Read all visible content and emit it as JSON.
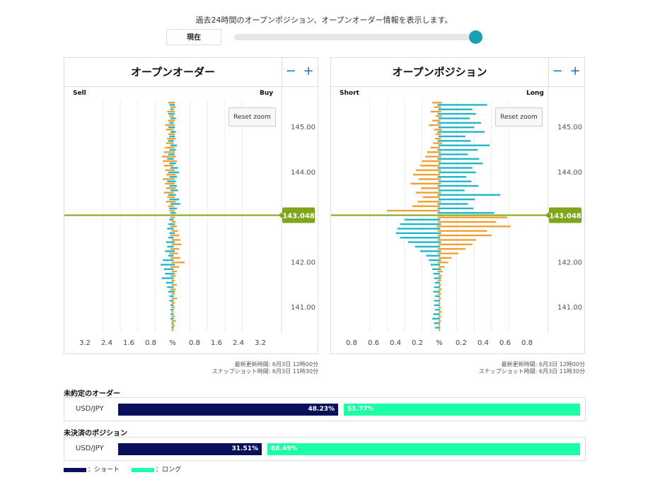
{
  "header": {
    "intro": "過去24時間のオープンポジション、オープンオーダー情報を表示します。",
    "now_button": "現在",
    "slider_value": 1.0
  },
  "colors": {
    "teal": "#20b7c8",
    "orange": "#f0a030",
    "price_line": "#7fa61a",
    "short": "#0a0f5c",
    "long": "#1cffa6"
  },
  "orders_panel": {
    "title": "オープンオーダー",
    "zoom_out": "−",
    "zoom_in": "+",
    "left_label": "Sell",
    "right_label": "Buy",
    "reset_zoom": "Reset zoom",
    "current_price": "143.048",
    "updated": "最新更新時間: 6月3日 12時00分",
    "snapshot": "スナップショット時間: 6月3日 11時30分"
  },
  "positions_panel": {
    "title": "オープンポジション",
    "zoom_out": "−",
    "zoom_in": "+",
    "left_label": "Short",
    "right_label": "Long",
    "reset_zoom": "Reset zoom",
    "current_price": "143.048",
    "updated": "最新更新時間: 6月3日 12時00分",
    "snapshot": "スナップショット時間: 6月3日 11時30分"
  },
  "chart_data": [
    {
      "type": "bar",
      "orientation": "horizontal-butterfly",
      "title": "オープンオーダー",
      "left_label": "Sell",
      "right_label": "Buy",
      "price_ticks": [
        "145.00",
        "144.00",
        "142.00",
        "141.00"
      ],
      "x_ticks_left": [
        "3.2",
        "2.4",
        "1.6",
        "0.8"
      ],
      "x_center_label": "%",
      "x_ticks_right": [
        "0.8",
        "1.6",
        "2.4",
        "3.2"
      ],
      "current_price": 143.048,
      "xlim": [
        -4.0,
        4.0
      ],
      "ylim": [
        140.45,
        145.6
      ],
      "series": [
        {
          "color": "orange",
          "prices": [
            145.55,
            145.45,
            145.35,
            145.25,
            145.15,
            145.05,
            144.95,
            144.85,
            144.75,
            144.65,
            144.55,
            144.45,
            144.35,
            144.25,
            144.15,
            144.05,
            143.95,
            143.85,
            143.75,
            143.65,
            143.55,
            143.45,
            143.35,
            143.25,
            143.15
          ],
          "left": [
            0.2,
            0.1,
            0.25,
            0.15,
            0.2,
            0.35,
            0.3,
            0.2,
            0.25,
            0.3,
            0.35,
            0.4,
            0.5,
            0.45,
            0.4,
            0.35,
            0.3,
            0.45,
            0.35,
            0.3,
            0.4,
            0.25,
            0.3,
            0.2,
            0.15
          ],
          "right": [
            0.1,
            0.15,
            0.1,
            0.05,
            0.1,
            0.1,
            0.05,
            0.1,
            0.15,
            0.05,
            0.1,
            0.1,
            0.15,
            0.2,
            0.05,
            0.1,
            0.15,
            0.1,
            0.1,
            0.15,
            0.05,
            0.1,
            0.15,
            0.05,
            0.1
          ]
        },
        {
          "color": "teal",
          "prices": [
            145.5,
            145.4,
            145.3,
            145.2,
            145.1,
            145.0,
            144.9,
            144.8,
            144.7,
            144.6,
            144.5,
            144.4,
            144.3,
            144.2,
            144.1,
            144.0,
            143.9,
            143.8,
            143.7,
            143.6,
            143.5,
            143.4,
            143.3,
            143.2,
            143.1
          ],
          "left": [
            0.15,
            0.1,
            0.2,
            0.1,
            0.15,
            0.2,
            0.1,
            0.15,
            0.2,
            0.1,
            0.15,
            0.2,
            0.25,
            0.15,
            0.1,
            0.2,
            0.15,
            0.25,
            0.15,
            0.1,
            0.2,
            0.15,
            0.1,
            0.15,
            0.1
          ],
          "right": [
            0.1,
            0.05,
            0.1,
            0.15,
            0.05,
            0.1,
            0.15,
            0.1,
            0.05,
            0.2,
            0.15,
            0.1,
            0.05,
            0.15,
            0.25,
            0.3,
            0.2,
            0.15,
            0.2,
            0.25,
            0.15,
            0.3,
            0.35,
            0.2,
            0.15
          ]
        },
        {
          "color": "orange",
          "prices": [
            143.0,
            142.9,
            142.8,
            142.7,
            142.6,
            142.5,
            142.4,
            142.3,
            142.2,
            142.1,
            142.0,
            141.9,
            141.8,
            141.7,
            141.6,
            141.5,
            141.4,
            141.3,
            141.2,
            141.1,
            141.0,
            140.9,
            140.8,
            140.7,
            140.6,
            140.5
          ],
          "left": [
            0.1,
            0.05,
            0.1,
            0.05,
            0.1,
            0.05,
            0.05,
            0.1,
            0.15,
            0.1,
            0.05,
            0.1,
            0.05,
            0.1,
            0.05,
            0.05,
            0.1,
            0.05,
            0.05,
            0.05,
            0.05,
            0.05,
            0.05,
            0.05,
            0.05,
            0.05
          ],
          "right": [
            0.1,
            0.15,
            0.2,
            0.25,
            0.3,
            0.35,
            0.4,
            0.3,
            0.25,
            0.35,
            0.55,
            0.3,
            0.2,
            0.15,
            0.1,
            0.2,
            0.15,
            0.1,
            0.2,
            0.1,
            0.1,
            0.05,
            0.1,
            0.15,
            0.1,
            0.05
          ]
        },
        {
          "color": "teal",
          "prices": [
            142.95,
            142.85,
            142.75,
            142.65,
            142.55,
            142.45,
            142.35,
            142.25,
            142.15,
            142.05,
            141.95,
            141.85,
            141.75,
            141.65,
            141.55,
            141.45,
            141.35,
            141.25,
            141.15,
            141.05,
            140.95,
            140.85,
            140.75,
            140.65,
            140.55
          ],
          "left": [
            0.15,
            0.2,
            0.25,
            0.15,
            0.2,
            0.3,
            0.25,
            0.35,
            0.2,
            0.45,
            0.55,
            0.4,
            0.35,
            0.5,
            0.3,
            0.25,
            0.2,
            0.15,
            0.15,
            0.1,
            0.1,
            0.1,
            0.1,
            0.05,
            0.05
          ],
          "right": [
            0.05,
            0.1,
            0.05,
            0.1,
            0.05,
            0.1,
            0.05,
            0.1,
            0.05,
            0.05,
            0.1,
            0.05,
            0.1,
            0.05,
            0.05,
            0.05,
            0.1,
            0.05,
            0.05,
            0.05,
            0.05,
            0.05,
            0.05,
            0.05,
            0.05
          ]
        }
      ]
    },
    {
      "type": "bar",
      "orientation": "horizontal-butterfly",
      "title": "オープンポジション",
      "left_label": "Short",
      "right_label": "Long",
      "price_ticks": [
        "145.00",
        "144.00",
        "142.00",
        "141.00"
      ],
      "x_ticks_left": [
        "0.8",
        "0.6",
        "0.4",
        "0.2"
      ],
      "x_center_label": "%",
      "x_ticks_right": [
        "0.2",
        "0.4",
        "0.6",
        "0.8"
      ],
      "current_price": 143.048,
      "xlim": [
        -1.0,
        1.0
      ],
      "ylim": [
        140.45,
        145.6
      ],
      "series": [
        {
          "color": "orange",
          "prices": [
            145.55,
            145.45,
            145.35,
            145.25,
            145.15,
            145.05,
            144.95,
            144.85,
            144.75,
            144.65,
            144.55,
            144.45,
            144.35,
            144.25,
            144.15,
            144.05,
            143.95,
            143.85,
            143.75,
            143.65,
            143.55,
            143.45,
            143.35,
            143.25,
            143.15
          ],
          "left": [
            0.08,
            0.06,
            0.1,
            0.04,
            0.08,
            0.12,
            0.06,
            0.04,
            0.05,
            0.07,
            0.1,
            0.14,
            0.16,
            0.2,
            0.22,
            0.27,
            0.3,
            0.24,
            0.33,
            0.21,
            0.27,
            0.19,
            0.25,
            0.31,
            0.6
          ],
          "right": [
            0.03,
            0.02,
            0.02,
            0.03,
            0.01,
            0.02,
            0.03,
            0.02,
            0.02,
            0.03,
            0.01,
            0.02,
            0.02,
            0.02,
            0.01,
            0.02,
            0.01,
            0.02,
            0.02,
            0.01,
            0.02,
            0.01,
            0.02,
            0.01,
            0.01
          ]
        },
        {
          "color": "teal",
          "prices": [
            145.5,
            145.4,
            145.3,
            145.2,
            145.1,
            145.0,
            144.9,
            144.8,
            144.7,
            144.6,
            144.5,
            144.4,
            144.3,
            144.2,
            144.1,
            144.0,
            143.9,
            143.8,
            143.7,
            143.6,
            143.5,
            143.4,
            143.3,
            143.2,
            143.1
          ],
          "left": [
            0.02,
            0.01,
            0.02,
            0.01,
            0.02,
            0.01,
            0.02,
            0.01,
            0.02,
            0.01,
            0.02,
            0.01,
            0.02,
            0.01,
            0.02,
            0.01,
            0.02,
            0.01,
            0.02,
            0.01,
            0.02,
            0.01,
            0.02,
            0.02,
            0.02
          ],
          "right": [
            0.55,
            0.38,
            0.42,
            0.35,
            0.48,
            0.4,
            0.52,
            0.3,
            0.36,
            0.58,
            0.44,
            0.33,
            0.46,
            0.5,
            0.38,
            0.42,
            0.31,
            0.37,
            0.45,
            0.29,
            0.7,
            0.41,
            0.33,
            0.39,
            0.63
          ]
        },
        {
          "color": "orange",
          "prices": [
            143.0,
            142.9,
            142.8,
            142.7,
            142.6,
            142.5,
            142.4,
            142.3,
            142.2,
            142.1,
            142.0,
            141.9,
            141.8,
            141.7,
            141.6,
            141.5,
            141.4,
            141.3,
            141.2,
            141.1,
            141.0,
            140.9,
            140.8,
            140.7,
            140.6,
            140.5
          ],
          "left": [
            0.02,
            0.02,
            0.03,
            0.02,
            0.02,
            0.02,
            0.01,
            0.02,
            0.02,
            0.01,
            0.02,
            0.01,
            0.02,
            0.01,
            0.02,
            0.01,
            0.01,
            0.02,
            0.01,
            0.01,
            0.01,
            0.01,
            0.01,
            0.01,
            0.01,
            0.01
          ],
          "right": [
            0.78,
            0.65,
            0.82,
            0.55,
            0.6,
            0.42,
            0.38,
            0.3,
            0.22,
            0.14,
            0.1,
            0.06,
            0.04,
            0.03,
            0.02,
            0.02,
            0.03,
            0.02,
            0.02,
            0.01,
            0.02,
            0.03,
            0.02,
            0.02,
            0.01,
            0.01
          ]
        },
        {
          "color": "teal",
          "prices": [
            142.95,
            142.85,
            142.75,
            142.65,
            142.55,
            142.45,
            142.35,
            142.25,
            142.15,
            142.05,
            141.95,
            141.85,
            141.75,
            141.65,
            141.55,
            141.45,
            141.35,
            141.25,
            141.15,
            141.05,
            140.95,
            140.85,
            140.75,
            140.65,
            140.55
          ],
          "left": [
            0.4,
            0.45,
            0.48,
            0.5,
            0.45,
            0.36,
            0.28,
            0.22,
            0.15,
            0.12,
            0.1,
            0.08,
            0.07,
            0.06,
            0.05,
            0.06,
            0.07,
            0.05,
            0.06,
            0.06,
            0.05,
            0.07,
            0.08,
            0.06,
            0.05
          ],
          "right": [
            0.01,
            0.02,
            0.01,
            0.02,
            0.01,
            0.02,
            0.01,
            0.02,
            0.01,
            0.02,
            0.01,
            0.02,
            0.01,
            0.02,
            0.01,
            0.01,
            0.01,
            0.01,
            0.01,
            0.01,
            0.01,
            0.01,
            0.01,
            0.01,
            0.01
          ]
        }
      ]
    }
  ],
  "summary": {
    "orders_title": "未約定のオーダー",
    "orders_pair": "USD/JPY",
    "orders_short": "48.23%",
    "orders_long": "51.77%",
    "orders_short_value": 48.23,
    "orders_long_value": 51.77,
    "positions_title": "未決済のポジション",
    "positions_pair": "USD/JPY",
    "positions_short": "31.51%",
    "positions_long": "68.49%",
    "positions_short_value": 31.51,
    "positions_long_value": 68.49
  },
  "legend": {
    "short": "：ショート",
    "long": "：ロング"
  }
}
